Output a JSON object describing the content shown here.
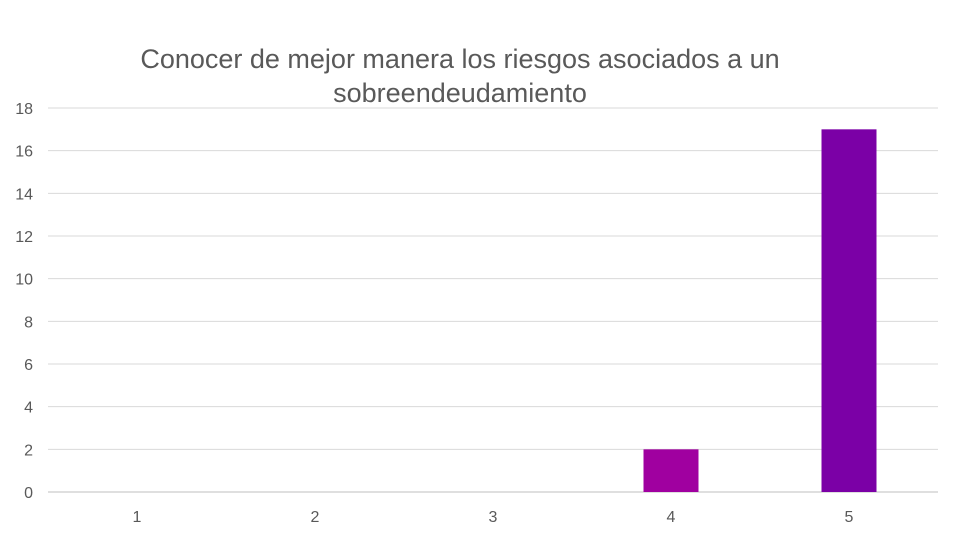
{
  "chart_data": {
    "type": "bar",
    "title": "Conocer de mejor manera los riesgos asociados a un sobreendeudamiento",
    "categories": [
      "1",
      "2",
      "3",
      "4",
      "5"
    ],
    "values": [
      0,
      0,
      0,
      2,
      17
    ],
    "bar_colors": [
      "#a000a0",
      "#a000a0",
      "#a000a0",
      "#a000a0",
      "#7b00a6"
    ],
    "ylim": [
      0,
      18
    ],
    "yticks": [
      0,
      2,
      4,
      6,
      8,
      10,
      12,
      14,
      16,
      18
    ],
    "grid": true,
    "legend": "none",
    "xlabel": "",
    "ylabel": ""
  }
}
